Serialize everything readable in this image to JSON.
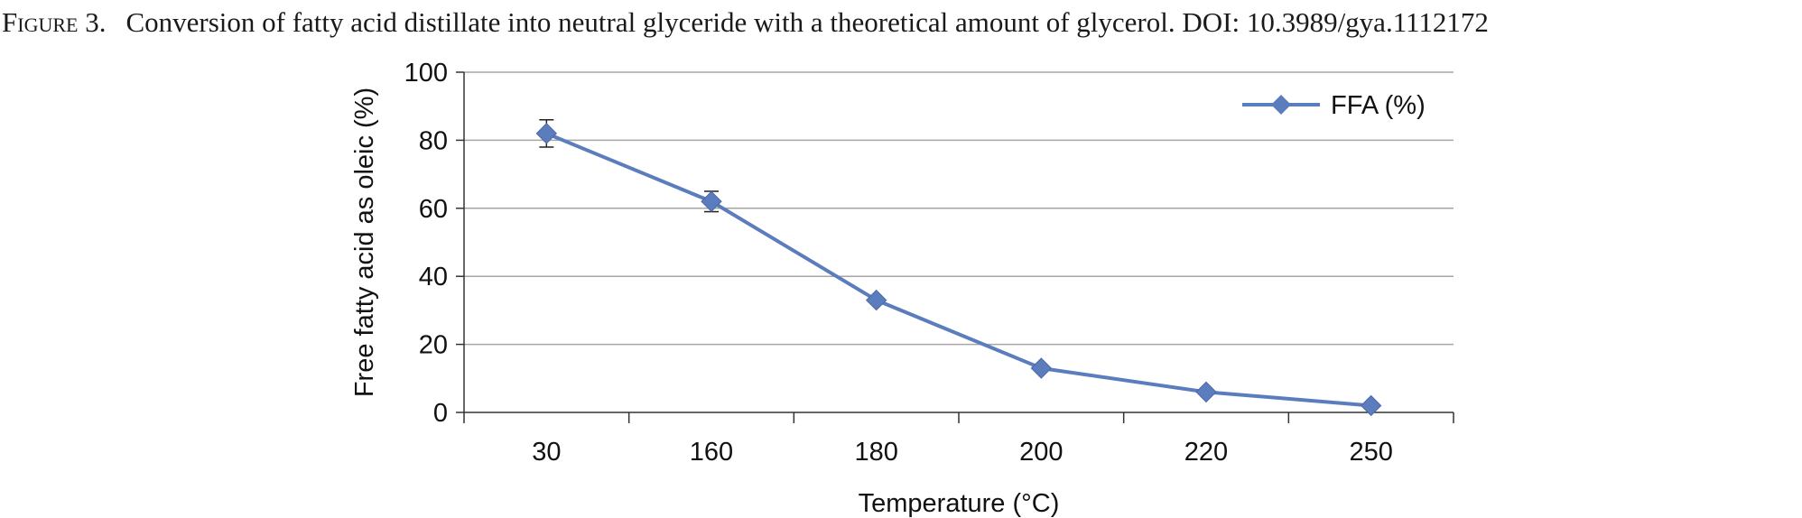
{
  "caption": {
    "label": "Figure 3.",
    "text": "Conversion of fatty acid distillate into neutral glyceride with a theoretical amount of glycerol. DOI: 10.3989/gya.1112172"
  },
  "chart_data": {
    "type": "line",
    "title": "",
    "xlabel": "Temperature (°C)",
    "ylabel": "Free fatty acid as oleic (%)",
    "categories": [
      "30",
      "160",
      "180",
      "200",
      "220",
      "250"
    ],
    "ylim": [
      0,
      100
    ],
    "yticks": [
      0,
      20,
      40,
      60,
      80,
      100
    ],
    "grid": true,
    "legend_position": "top-right",
    "series": [
      {
        "name": "FFA (%)",
        "values": [
          82,
          62,
          33,
          13,
          6,
          2
        ],
        "error": [
          4,
          3,
          0,
          0,
          0,
          0
        ],
        "color": "#5b7dbd",
        "marker": "diamond"
      }
    ]
  }
}
